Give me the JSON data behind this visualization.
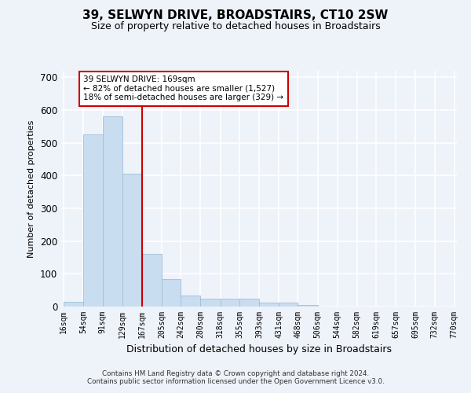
{
  "title": "39, SELWYN DRIVE, BROADSTAIRS, CT10 2SW",
  "subtitle": "Size of property relative to detached houses in Broadstairs",
  "xlabel": "Distribution of detached houses by size in Broadstairs",
  "ylabel": "Number of detached properties",
  "bar_color": "#c8ddf0",
  "bar_edge_color": "#a0bfd8",
  "vline_x": 167,
  "vline_color": "#cc0000",
  "annotation_text": "39 SELWYN DRIVE: 169sqm\n← 82% of detached houses are smaller (1,527)\n18% of semi-detached houses are larger (329) →",
  "annotation_box_color": "#cc0000",
  "bin_edges": [
    16,
    54,
    91,
    129,
    167,
    205,
    242,
    280,
    318,
    355,
    393,
    431,
    468,
    506,
    544,
    582,
    619,
    657,
    695,
    732,
    770
  ],
  "bar_heights": [
    15,
    525,
    580,
    405,
    160,
    85,
    33,
    23,
    25,
    23,
    12,
    12,
    5,
    0,
    0,
    0,
    0,
    0,
    0,
    1
  ],
  "ylim": [
    0,
    720
  ],
  "yticks": [
    0,
    100,
    200,
    300,
    400,
    500,
    600,
    700
  ],
  "footer_text": "Contains HM Land Registry data © Crown copyright and database right 2024.\nContains public sector information licensed under the Open Government Licence v3.0.",
  "bg_color": "#eef2f9",
  "grid_color": "#ffffff",
  "title_fontsize": 11,
  "subtitle_fontsize": 9,
  "ylabel_fontsize": 8,
  "xlabel_fontsize": 9,
  "ytick_fontsize": 8.5,
  "xtick_fontsize": 7
}
